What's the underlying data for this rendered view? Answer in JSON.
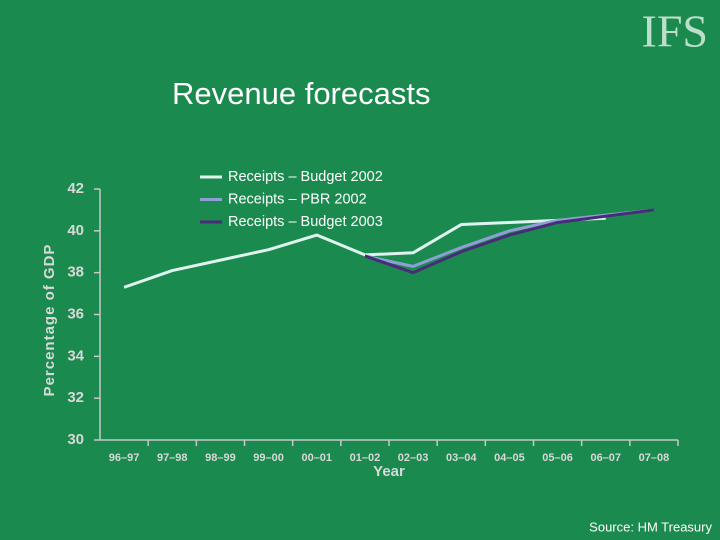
{
  "logo": "IFS",
  "source": "Source: HM Treasury",
  "chart_data": {
    "type": "line",
    "title": "Revenue forecasts",
    "x_label": "Year",
    "y_label": "Percentage of GDP",
    "categories": [
      "96–97",
      "97–98",
      "98–99",
      "99–00",
      "00–01",
      "01–02",
      "02–03",
      "03–04",
      "04–05",
      "05–06",
      "06–07",
      "07–08"
    ],
    "series": [
      {
        "name": "Receipts – Budget 2002",
        "color": "#dff3f0",
        "values": [
          37.3,
          38.1,
          38.6,
          39.1,
          39.8,
          38.85,
          38.95,
          40.3,
          40.4,
          40.5,
          40.6,
          null
        ]
      },
      {
        "name": "Receipts – PBR 2002",
        "color": "#8f9fd6",
        "values": [
          null,
          null,
          null,
          null,
          null,
          38.8,
          38.3,
          39.2,
          40.0,
          40.5,
          40.75,
          41.0
        ]
      },
      {
        "name": "Receipts – Budget 2003",
        "color": "#4a2a7a",
        "values": [
          null,
          null,
          null,
          null,
          null,
          38.8,
          38.0,
          39.0,
          39.8,
          40.4,
          40.7,
          41.0
        ]
      }
    ],
    "ylim": [
      30,
      42
    ],
    "yticks": [
      30,
      32,
      34,
      36,
      38,
      40,
      42
    ],
    "grid": false,
    "legend": "top-left"
  }
}
